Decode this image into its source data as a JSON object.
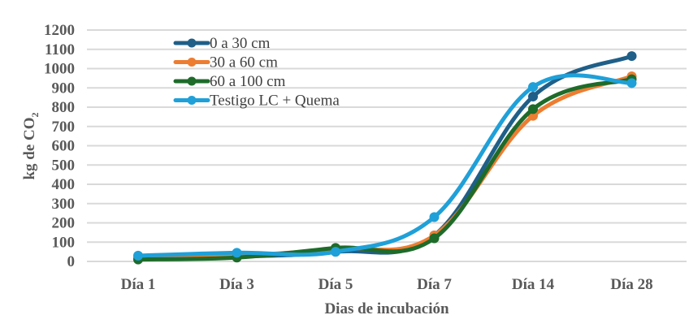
{
  "chart_data": {
    "type": "line",
    "title": "",
    "xlabel": "Dias de incubación",
    "ylabel": "kg de CO",
    "ylabel_subscript": "2",
    "ylim": [
      0,
      1200
    ],
    "yticks": [
      0,
      100,
      200,
      300,
      400,
      500,
      600,
      700,
      800,
      900,
      1000,
      1100,
      1200
    ],
    "grid": true,
    "smooth": true,
    "legend_position": "top-left",
    "categories": [
      "Día 1",
      "Día 3",
      "Día 5",
      "Día 7",
      "Día 14",
      "Día 28"
    ],
    "series": [
      {
        "name": "0 a 30 cm",
        "color": "#1f5f88",
        "values": [
          15,
          25,
          50,
          135,
          855,
          1065
        ]
      },
      {
        "name": "30 a 60 cm",
        "color": "#ed7d31",
        "values": [
          20,
          30,
          65,
          135,
          755,
          960
        ]
      },
      {
        "name": "60 a 100 cm",
        "color": "#1e6b2a",
        "values": [
          10,
          20,
          70,
          120,
          790,
          945
        ]
      },
      {
        "name": "Testigo LC + Quema",
        "color": "#1fa0d8",
        "values": [
          30,
          45,
          50,
          230,
          905,
          925
        ]
      }
    ]
  }
}
